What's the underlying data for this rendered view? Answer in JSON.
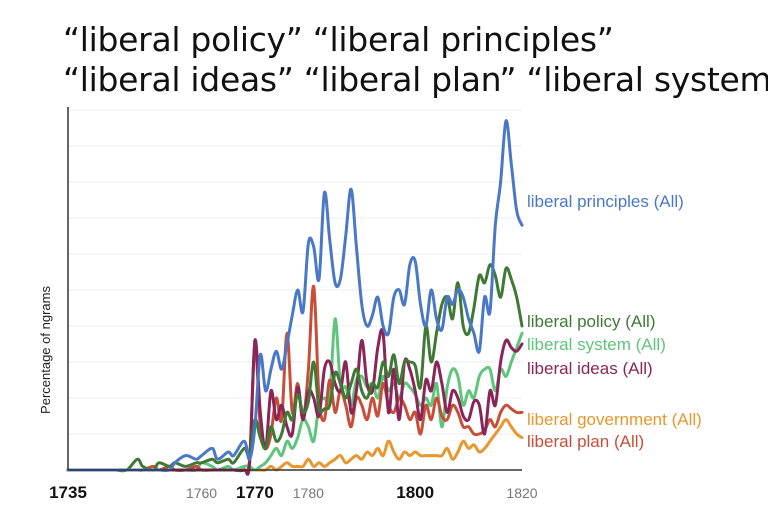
{
  "title_lines": [
    "“liberal policy”  “liberal principles”",
    "“liberal ideas” “liberal plan” “liberal system”"
  ],
  "chart_data": {
    "type": "line",
    "title": "",
    "xlabel": "",
    "ylabel": "Percentage of ngrams",
    "xlim": [
      1735,
      1820
    ],
    "ylim": [
      0,
      100
    ],
    "grid": true,
    "legend": "inline-right",
    "x_ticks": [
      {
        "label": "1735",
        "x": 1735,
        "style": "major"
      },
      {
        "label": "1760",
        "x": 1760,
        "style": "minor"
      },
      {
        "label": "1770",
        "x": 1770,
        "style": "major"
      },
      {
        "label": "1780",
        "x": 1780,
        "style": "minor"
      },
      {
        "label": "1800",
        "x": 1800,
        "style": "major"
      },
      {
        "label": "1820",
        "x": 1820,
        "style": "minor"
      }
    ],
    "x": [
      1735,
      1737,
      1740,
      1741,
      1743,
      1744,
      1746,
      1748,
      1749,
      1751,
      1752,
      1754,
      1755,
      1757,
      1759,
      1760,
      1762,
      1763,
      1765,
      1766,
      1768,
      1769,
      1770,
      1771,
      1772,
      1773,
      1774,
      1775,
      1776,
      1777,
      1778,
      1779,
      1780,
      1781,
      1782,
      1783,
      1784,
      1785,
      1786,
      1787,
      1788,
      1789,
      1790,
      1791,
      1792,
      1793,
      1794,
      1795,
      1796,
      1797,
      1798,
      1799,
      1800,
      1801,
      1802,
      1803,
      1804,
      1805,
      1806,
      1807,
      1808,
      1809,
      1810,
      1811,
      1812,
      1813,
      1814,
      1815,
      1816,
      1817,
      1818,
      1819,
      1820
    ],
    "series": [
      {
        "name": "liberal principles (All)",
        "color": "#4a78c8",
        "values": [
          0,
          0,
          0,
          0,
          0,
          0,
          0,
          0,
          0,
          0,
          0,
          0,
          2,
          4,
          3,
          4,
          6,
          3,
          5,
          4,
          8,
          3,
          12,
          32,
          22,
          28,
          33,
          28,
          35,
          43,
          50,
          44,
          63,
          62,
          53,
          77,
          64,
          52,
          53,
          65,
          78,
          62,
          46,
          40,
          43,
          48,
          40,
          38,
          48,
          50,
          46,
          57,
          58,
          46,
          40,
          50,
          42,
          39,
          48,
          46,
          50,
          48,
          42,
          38,
          33,
          48,
          44,
          68,
          80,
          97,
          85,
          72,
          68
        ]
      },
      {
        "name": "liberal policy (All)",
        "color": "#3f7a34",
        "values": [
          0,
          0,
          0,
          0,
          0,
          0,
          0,
          3,
          1,
          0,
          2,
          1,
          2,
          1,
          2,
          2,
          3,
          2,
          3,
          2,
          6,
          4,
          14,
          9,
          6,
          12,
          8,
          10,
          16,
          14,
          21,
          16,
          19,
          30,
          17,
          17,
          18,
          27,
          24,
          20,
          24,
          28,
          22,
          20,
          24,
          23,
          30,
          26,
          32,
          24,
          30,
          30,
          29,
          23,
          40,
          30,
          38,
          46,
          48,
          42,
          52,
          40,
          38,
          45,
          54,
          52,
          57,
          54,
          48,
          56,
          53,
          48,
          40
        ]
      },
      {
        "name": "liberal system (All)",
        "color": "#5fc57a",
        "values": [
          0,
          0,
          0,
          0,
          0,
          0,
          0,
          0,
          0,
          0,
          0,
          0,
          0,
          0,
          0,
          2,
          1,
          0,
          1,
          0,
          1,
          1,
          0,
          1,
          2,
          4,
          6,
          4,
          8,
          6,
          9,
          14,
          12,
          8,
          18,
          20,
          20,
          42,
          24,
          23,
          18,
          25,
          26,
          23,
          24,
          20,
          26,
          22,
          24,
          20,
          24,
          23,
          21,
          18,
          20,
          18,
          24,
          12,
          23,
          28,
          26,
          18,
          22,
          20,
          26,
          28,
          28,
          22,
          28,
          26,
          30,
          34,
          38
        ]
      },
      {
        "name": "liberal ideas (All)",
        "color": "#8a2558",
        "values": [
          0,
          0,
          0,
          0,
          0,
          0,
          0,
          0,
          0,
          0,
          0,
          0,
          0,
          0,
          0,
          0,
          0,
          0,
          0,
          0,
          0,
          2,
          36,
          16,
          6,
          22,
          14,
          18,
          12,
          10,
          23,
          14,
          22,
          20,
          15,
          28,
          30,
          24,
          22,
          30,
          16,
          22,
          36,
          24,
          22,
          34,
          38,
          16,
          28,
          14,
          30,
          28,
          22,
          14,
          25,
          22,
          30,
          24,
          16,
          22,
          20,
          15,
          14,
          19,
          18,
          10,
          22,
          18,
          30,
          36,
          34,
          33,
          35
        ]
      },
      {
        "name": "liberal government (All)",
        "color": "#e8962e",
        "values": [
          0,
          0,
          0,
          0,
          0,
          0,
          0,
          0,
          0,
          0,
          0,
          0,
          0,
          0,
          0,
          0,
          0,
          0,
          0,
          0,
          0,
          0,
          0,
          0,
          0,
          1,
          0,
          1,
          2,
          1,
          1,
          1,
          3,
          1,
          2,
          1,
          2,
          3,
          4,
          2,
          3,
          4,
          3,
          5,
          4,
          6,
          4,
          8,
          5,
          3,
          5,
          4,
          5,
          4,
          4,
          4,
          4,
          4,
          6,
          3,
          5,
          8,
          6,
          7,
          5,
          6,
          8,
          10,
          12,
          14,
          12,
          10,
          9
        ]
      },
      {
        "name": "liberal plan (All)",
        "color": "#c84e3a",
        "values": [
          0,
          0,
          0,
          0,
          0,
          0,
          0,
          0,
          0,
          1,
          0,
          1,
          0,
          0,
          1,
          0,
          0,
          0,
          0,
          0,
          0,
          3,
          35,
          12,
          6,
          10,
          20,
          14,
          38,
          16,
          24,
          14,
          28,
          51,
          20,
          14,
          25,
          16,
          22,
          18,
          12,
          20,
          18,
          14,
          20,
          15,
          24,
          18,
          16,
          20,
          18,
          14,
          16,
          10,
          18,
          14,
          20,
          15,
          14,
          18,
          16,
          12,
          12,
          10,
          10,
          11,
          14,
          12,
          16,
          18,
          17,
          16,
          16
        ]
      }
    ]
  }
}
